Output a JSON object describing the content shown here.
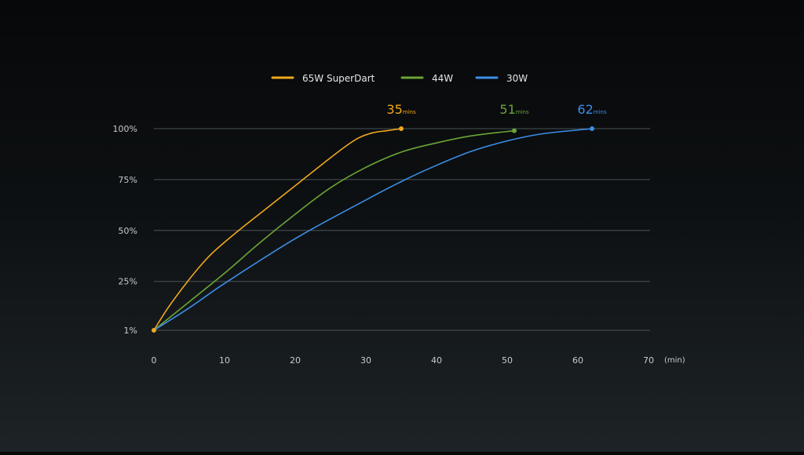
{
  "chart_data": {
    "type": "line",
    "xlabel": "(min)",
    "ylabel": "",
    "xlim": [
      0,
      70
    ],
    "ylim": [
      1,
      100
    ],
    "x_ticks": [
      0,
      10,
      20,
      30,
      40,
      50,
      60,
      70
    ],
    "x_tick_labels": [
      "0",
      "10",
      "20",
      "30",
      "40",
      "50",
      "60",
      "70"
    ],
    "y_ticks": [
      1,
      25,
      50,
      75,
      100
    ],
    "y_tick_labels": [
      "1%",
      "25%",
      "50%",
      "75%",
      "100%"
    ],
    "grid": true,
    "legend_position": "top-center",
    "series": [
      {
        "name": "65W SuperDart",
        "color": "#f0a81c",
        "x": [
          0,
          2,
          5,
          8,
          12,
          16,
          20,
          24,
          27,
          29,
          31,
          33,
          35
        ],
        "y": [
          1,
          12,
          26,
          38,
          50,
          61,
          72,
          83,
          91,
          95.5,
          98,
          99,
          100
        ],
        "end_value": "35",
        "end_unit": "mins"
      },
      {
        "name": "44W",
        "color": "#6aa535",
        "x": [
          0,
          5,
          10,
          15,
          20,
          25,
          30,
          35,
          40,
          45,
          51
        ],
        "y": [
          1,
          15,
          29,
          44,
          58,
          71,
          81,
          88.5,
          93,
          96.5,
          99
        ],
        "end_value": "51",
        "end_unit": "mins"
      },
      {
        "name": "30W",
        "color": "#3d8de6",
        "x": [
          0,
          5,
          10,
          20,
          30,
          35,
          40,
          45,
          50,
          55,
          62
        ],
        "y": [
          1,
          12,
          24,
          46,
          65,
          74,
          82,
          89,
          94,
          97.5,
          100
        ],
        "end_value": "62",
        "end_unit": "mins"
      }
    ]
  }
}
